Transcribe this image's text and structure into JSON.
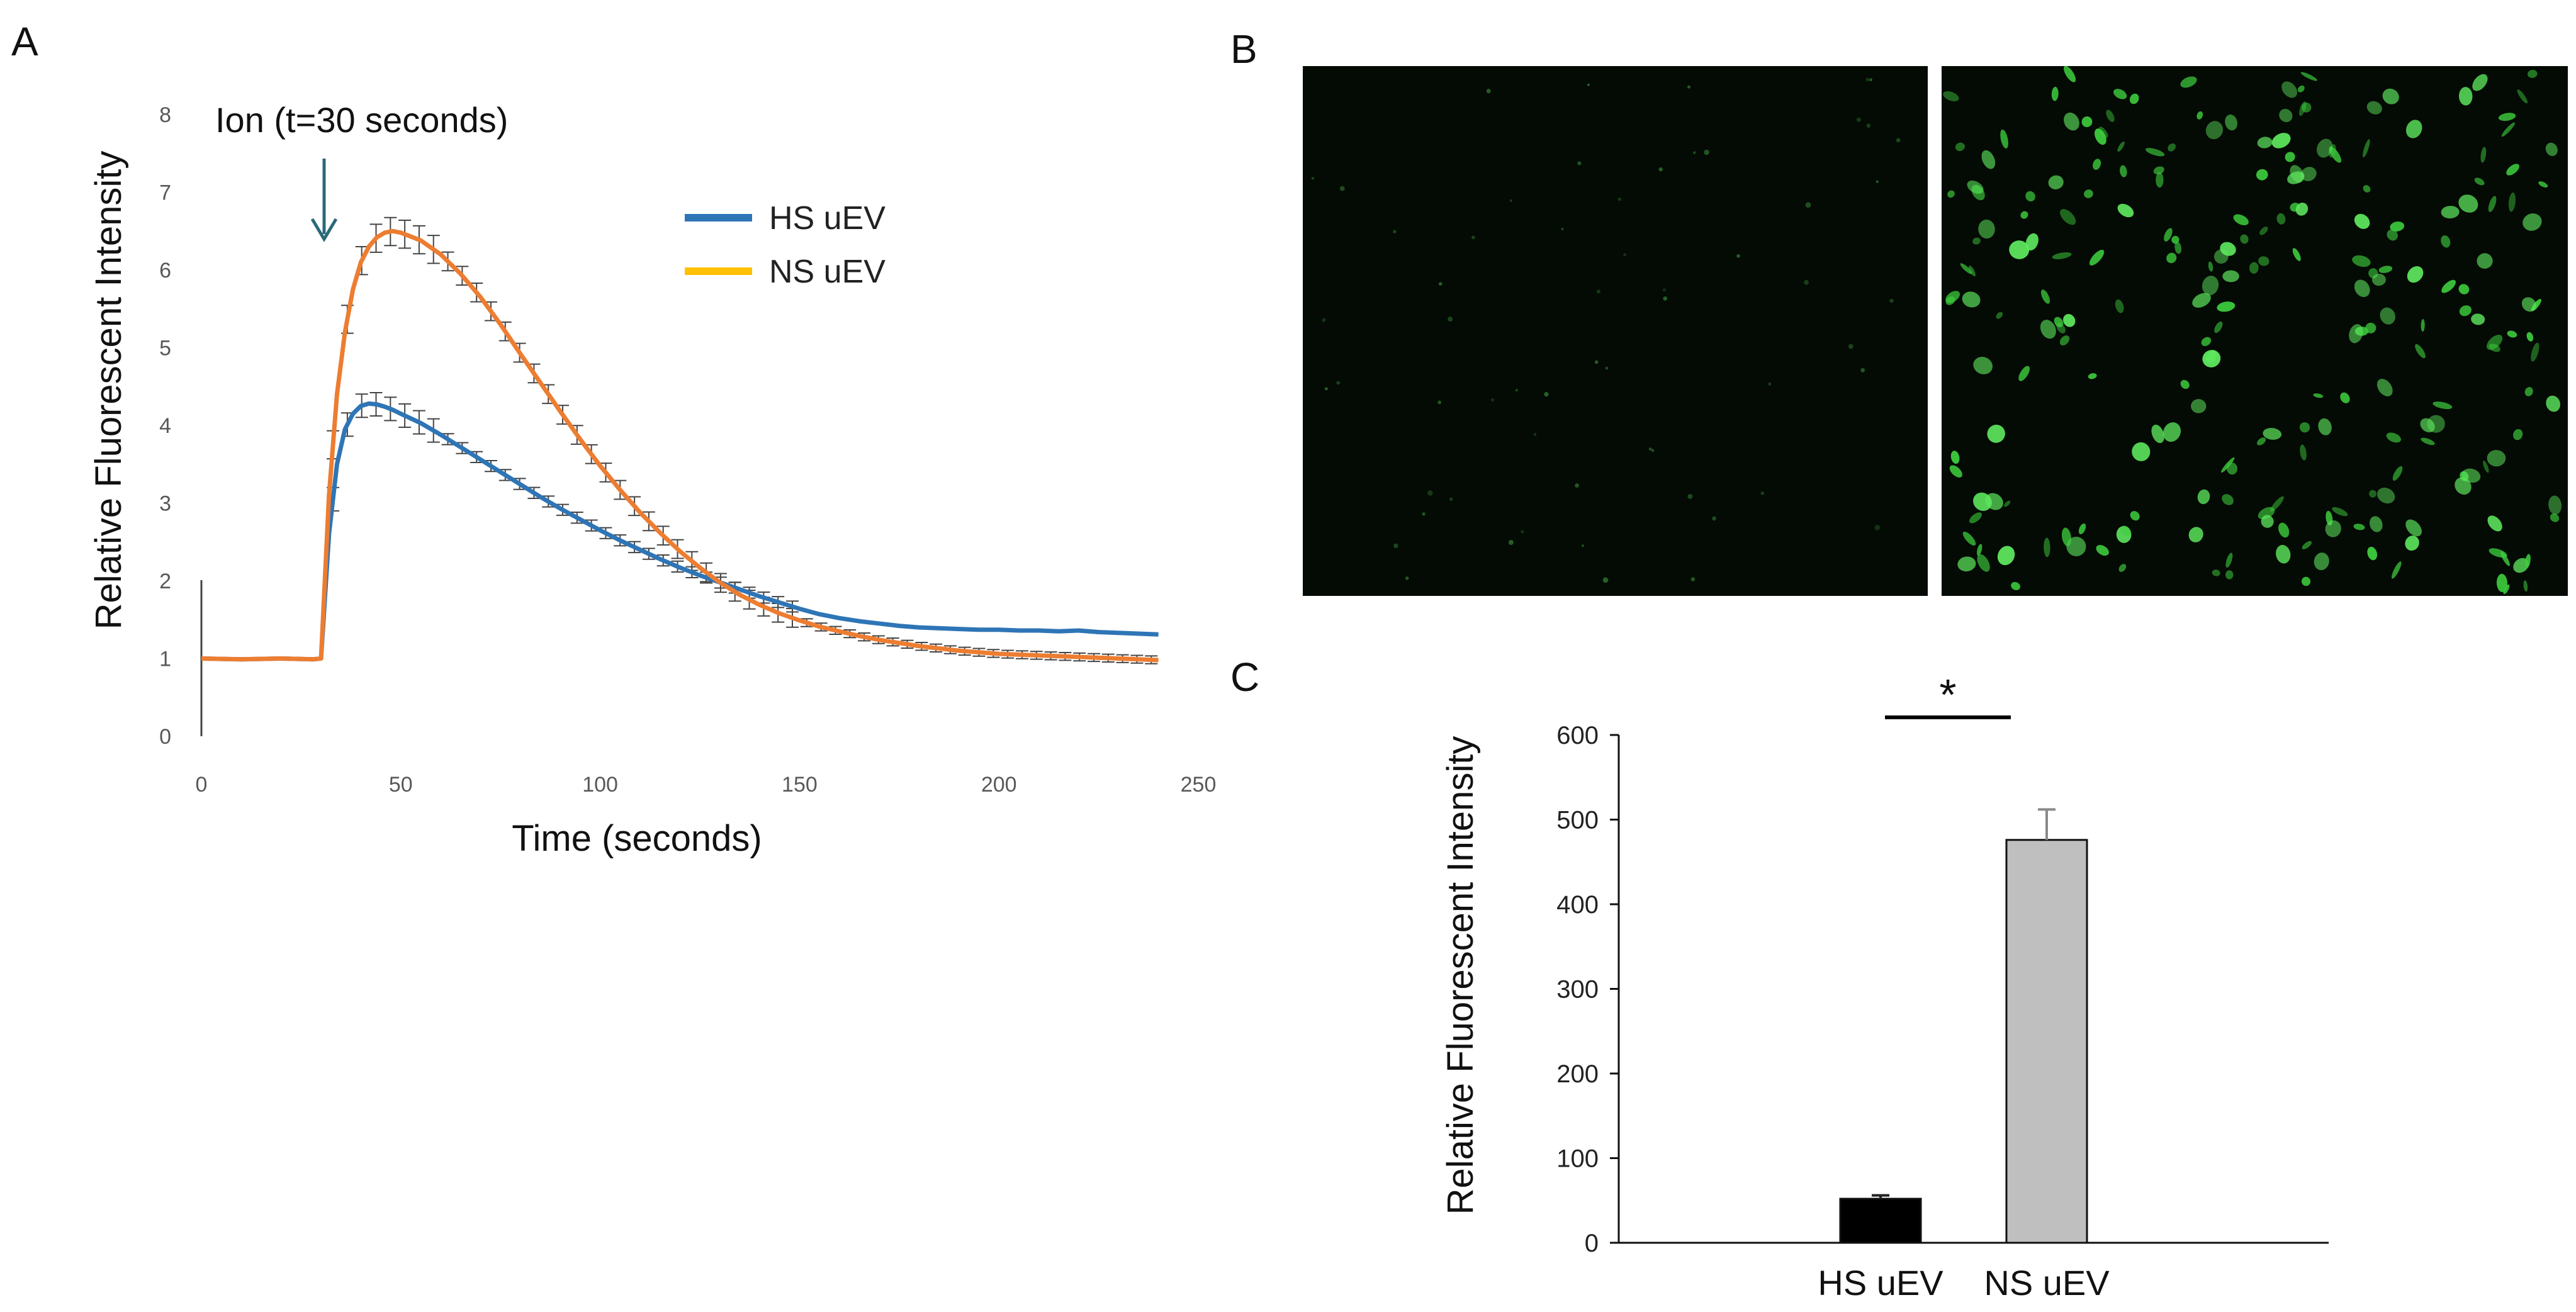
{
  "panels": {
    "a": "A",
    "b": "B",
    "c": "C"
  },
  "colors": {
    "hs": "#2e75b6",
    "ns_line": "#ed7d31",
    "ns_legend": "#ffc000",
    "bar_hs": "#000000",
    "bar_ns": "#bfbfbf",
    "micrograph_bg": "#040a04",
    "cell": "#3dcc3d"
  },
  "chart_data": [
    {
      "type": "line",
      "title": "",
      "xlabel": "Time (seconds)",
      "ylabel": "Relative Fluorescent Intensity",
      "xlim": [
        0,
        250
      ],
      "ylim": [
        0,
        8
      ],
      "xticks": [
        "0",
        "50",
        "100",
        "150",
        "200",
        "250"
      ],
      "yticks": [
        "0",
        "1",
        "2",
        "3",
        "4",
        "5",
        "6",
        "7",
        "8"
      ],
      "annotation": {
        "text": "Ion (t=30 seconds)",
        "x": 30
      },
      "legend": [
        {
          "name": "HS uEV"
        },
        {
          "name": "NS uEV"
        }
      ],
      "series": [
        {
          "name": "HS uEV",
          "x": [
            0,
            10,
            20,
            28,
            30,
            32,
            34,
            36,
            38,
            40,
            42,
            44,
            46,
            48,
            50,
            55,
            60,
            65,
            70,
            75,
            80,
            85,
            90,
            95,
            100,
            105,
            110,
            115,
            120,
            125,
            130,
            135,
            140,
            145,
            150,
            155,
            160,
            165,
            170,
            175,
            180,
            185,
            190,
            195,
            200,
            205,
            210,
            215,
            220,
            225,
            230,
            235,
            240
          ],
          "values": [
            1.0,
            0.99,
            1.0,
            0.99,
            1.0,
            2.6,
            3.5,
            3.95,
            4.15,
            4.25,
            4.28,
            4.27,
            4.24,
            4.2,
            4.15,
            4.03,
            3.88,
            3.72,
            3.56,
            3.4,
            3.24,
            3.08,
            2.93,
            2.79,
            2.65,
            2.52,
            2.4,
            2.28,
            2.17,
            2.07,
            1.98,
            1.89,
            1.8,
            1.72,
            1.64,
            1.57,
            1.52,
            1.48,
            1.45,
            1.42,
            1.4,
            1.39,
            1.38,
            1.37,
            1.37,
            1.36,
            1.36,
            1.35,
            1.36,
            1.34,
            1.33,
            1.32,
            1.31
          ]
        },
        {
          "name": "NS uEV",
          "x": [
            0,
            10,
            20,
            28,
            30,
            32,
            34,
            36,
            38,
            40,
            42,
            44,
            46,
            48,
            50,
            55,
            60,
            65,
            70,
            75,
            80,
            85,
            90,
            95,
            100,
            105,
            110,
            115,
            120,
            125,
            130,
            135,
            140,
            145,
            150,
            155,
            160,
            165,
            170,
            175,
            180,
            185,
            190,
            195,
            200,
            205,
            210,
            215,
            220,
            225,
            230,
            235,
            240
          ],
          "values": [
            1.0,
            0.99,
            1.0,
            0.99,
            1.0,
            3.1,
            4.4,
            5.2,
            5.75,
            6.1,
            6.3,
            6.42,
            6.48,
            6.5,
            6.48,
            6.38,
            6.2,
            5.95,
            5.65,
            5.3,
            4.92,
            4.55,
            4.18,
            3.82,
            3.48,
            3.17,
            2.88,
            2.62,
            2.38,
            2.17,
            1.98,
            1.82,
            1.69,
            1.58,
            1.49,
            1.41,
            1.35,
            1.29,
            1.24,
            1.2,
            1.16,
            1.13,
            1.1,
            1.08,
            1.06,
            1.05,
            1.04,
            1.03,
            1.02,
            1.01,
            1.0,
            0.99,
            0.98
          ]
        }
      ]
    },
    {
      "type": "bar",
      "title": "",
      "xlabel": "",
      "ylabel": "Relative Fluorescent Intensity",
      "ylim": [
        0,
        600
      ],
      "yticks": [
        "0",
        "100",
        "200",
        "300",
        "400",
        "500",
        "600"
      ],
      "categories": [
        "HS uEV",
        "NS uEV"
      ],
      "values": [
        52,
        476
      ],
      "errors": [
        4,
        36
      ],
      "significance": "*"
    }
  ]
}
